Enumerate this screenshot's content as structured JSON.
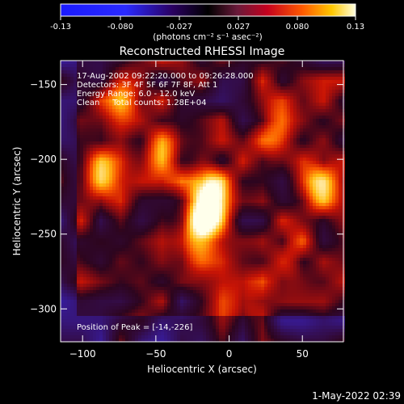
{
  "colorbar": {
    "ticks": [
      "-0.13",
      "-0.080",
      "-0.027",
      "0.027",
      "0.080",
      "0.13"
    ],
    "units": "(photons cm⁻² s⁻¹ asec⁻²)"
  },
  "chart_data": {
    "type": "heatmap",
    "title": "Reconstructed RHESSI Image",
    "xlabel": "Heliocentric X (arcsec)",
    "ylabel": "Heliocentric Y (arcsec)",
    "xlim": [
      -115,
      78
    ],
    "ylim": [
      -322,
      -134
    ],
    "xticks": [
      -100,
      -50,
      0,
      50
    ],
    "yticks": [
      -150,
      -200,
      -250,
      -300
    ],
    "value_range": [
      -0.13,
      0.13
    ],
    "colormap": "fire (black-purple-red-orange-yellow-white) with blue for negative",
    "annotations": [
      "17-Aug-2002 09:22:20.000 to 09:26:28.000",
      "Detectors: 3F 4F 5F 6F 7F 8F, Att 1",
      "Energy Range: 6.0 - 12.0 keV",
      "Clean     Total counts: 1.28E+04",
      "Position of Peak = [-14,-226]"
    ],
    "peak": {
      "x": -14,
      "y": -226
    },
    "sources": [
      {
        "x": -14,
        "y": -226,
        "amp": 0.13
      },
      {
        "x": -22,
        "y": -250,
        "amp": 0.085
      },
      {
        "x": -45,
        "y": -195,
        "amp": 0.07
      },
      {
        "x": -88,
        "y": -210,
        "amp": 0.075
      },
      {
        "x": -72,
        "y": -160,
        "amp": 0.065
      },
      {
        "x": 62,
        "y": -218,
        "amp": 0.085
      },
      {
        "x": 30,
        "y": -180,
        "amp": 0.06
      },
      {
        "x": 10,
        "y": -300,
        "amp": 0.05
      },
      {
        "x": 40,
        "y": -265,
        "amp": 0.055
      }
    ]
  },
  "footer": {
    "timestamp": "1-May-2022 02:39"
  }
}
